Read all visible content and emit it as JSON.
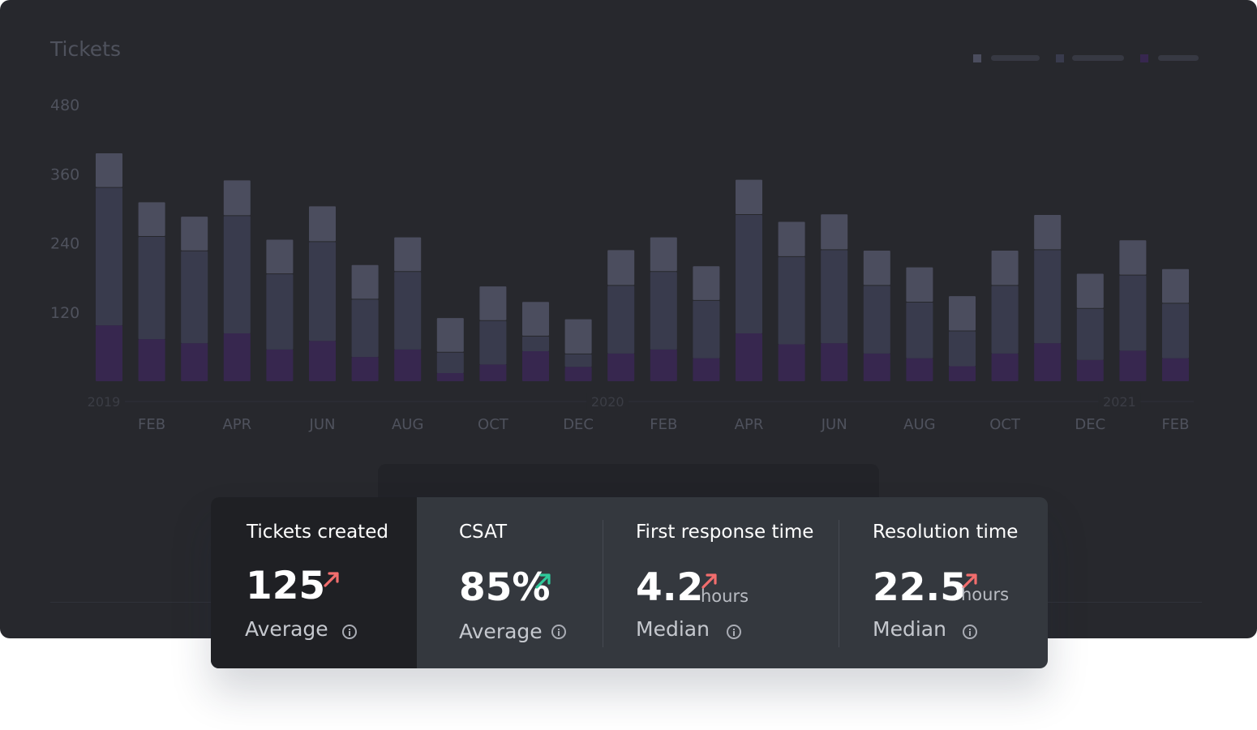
{
  "colors": {
    "series_bottom": "#37274f",
    "series_middle": "#393b4d",
    "series_top": "#4b4d5e",
    "axis_text": "#4f525d",
    "year_text": "#3b3d45",
    "arrow_up_red": "#f26d6d",
    "arrow_up_green": "#2fc99a"
  },
  "chart_data": {
    "type": "bar",
    "stacked": true,
    "title": "Tickets",
    "xlabel": "",
    "ylabel": "",
    "ylim": [
      0,
      480
    ],
    "yticks": [
      120,
      240,
      360,
      480
    ],
    "legend": {
      "placement": "top-right",
      "entries": [
        "",
        "",
        ""
      ]
    },
    "grid": false,
    "month_labels": [
      "FEB",
      "APR",
      "JUN",
      "AUG",
      "OCT",
      "DEC",
      "FEB",
      "APR",
      "JUN",
      "AUG",
      "OCT",
      "DEC",
      "FEB"
    ],
    "year_labels": [
      "2019",
      "2020",
      "2021"
    ],
    "categories": [
      "2019-01",
      "2019-02",
      "2019-03",
      "2019-04",
      "2019-05",
      "2019-06",
      "2019-07",
      "2019-08",
      "2019-09",
      "2019-10",
      "2019-11",
      "2019-12",
      "2020-01",
      "2020-02",
      "2020-03",
      "2020-04",
      "2020-05",
      "2020-06",
      "2020-07",
      "2020-08",
      "2020-09",
      "2020-10",
      "2020-11",
      "2020-12",
      "2021-01",
      "2021-02"
    ],
    "series": [
      {
        "values": [
          97,
          73,
          66,
          83,
          55,
          70,
          42,
          55,
          14,
          29,
          52,
          25,
          48,
          55,
          40,
          83,
          64,
          66,
          48,
          40,
          26,
          48,
          66,
          37,
          53,
          40
        ]
      },
      {
        "values": [
          240,
          179,
          161,
          205,
          132,
          173,
          101,
          136,
          37,
          77,
          27,
          23,
          119,
          136,
          101,
          207,
          153,
          163,
          119,
          98,
          62,
          119,
          163,
          90,
          132,
          96
        ]
      },
      {
        "values": [
          60,
          60,
          60,
          62,
          60,
          62,
          60,
          60,
          60,
          60,
          60,
          61,
          62,
          60,
          60,
          61,
          61,
          62,
          61,
          61,
          61,
          61,
          61,
          61,
          61,
          60
        ]
      }
    ]
  },
  "stats": [
    {
      "label": "Tickets created",
      "value": "125",
      "unit": "",
      "aggregate": "Average",
      "trend": "up",
      "trend_color": "red"
    },
    {
      "label": "CSAT",
      "value": "85%",
      "unit": "",
      "aggregate": "Average",
      "trend": "up",
      "trend_color": "green"
    },
    {
      "label": "First response time",
      "value": "4.2",
      "unit": "hours",
      "aggregate": "Median",
      "trend": "up",
      "trend_color": "red"
    },
    {
      "label": "Resolution time",
      "value": "22.5",
      "unit": "hours",
      "aggregate": "Median",
      "trend": "up",
      "trend_color": "red"
    }
  ]
}
